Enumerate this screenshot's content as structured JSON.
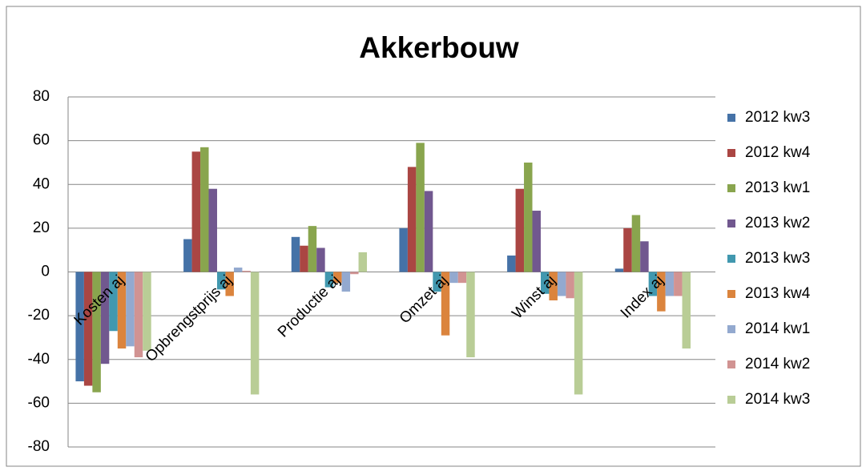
{
  "chart_data": {
    "type": "bar",
    "title": "Akkerbouw",
    "categories": [
      "Kosten aj",
      "Opbrengstprijs aj",
      "Productie aj",
      "Omzet aj",
      "Winst aj",
      "Index aj"
    ],
    "series": [
      {
        "name": "2012 kw3",
        "color": "#4572a7",
        "values": [
          -50,
          15,
          16,
          20,
          7.5,
          1.5
        ]
      },
      {
        "name": "2012 kw4",
        "color": "#aa4643",
        "values": [
          -52,
          55,
          12,
          48,
          38,
          20
        ]
      },
      {
        "name": "2013 kw1",
        "color": "#89a54e",
        "values": [
          -55,
          57,
          21,
          59,
          50,
          26
        ]
      },
      {
        "name": "2013 kw2",
        "color": "#71588f",
        "values": [
          -42,
          38,
          11,
          37,
          28,
          14
        ]
      },
      {
        "name": "2013 kw3",
        "color": "#4198af",
        "values": [
          -27,
          -8,
          -7,
          -9,
          -10,
          -11
        ]
      },
      {
        "name": "2013 kw4",
        "color": "#db843d",
        "values": [
          -35,
          -11,
          -5,
          -29,
          -13,
          -18
        ]
      },
      {
        "name": "2014 kw1",
        "color": "#93a9cf",
        "values": [
          -34,
          2,
          -9,
          -5,
          -11,
          -11
        ]
      },
      {
        "name": "2014 kw2",
        "color": "#d19392",
        "values": [
          -39,
          0.5,
          -1,
          -5,
          -12,
          -11
        ]
      },
      {
        "name": "2014 kw3",
        "color": "#b9cd96",
        "values": [
          -36,
          -56,
          9,
          -39,
          -56,
          -35
        ]
      }
    ],
    "ylim": [
      -80,
      80
    ],
    "yticks": [
      -80,
      -60,
      -40,
      -20,
      0,
      20,
      40,
      60,
      80
    ],
    "grid": true,
    "legend": "right"
  }
}
